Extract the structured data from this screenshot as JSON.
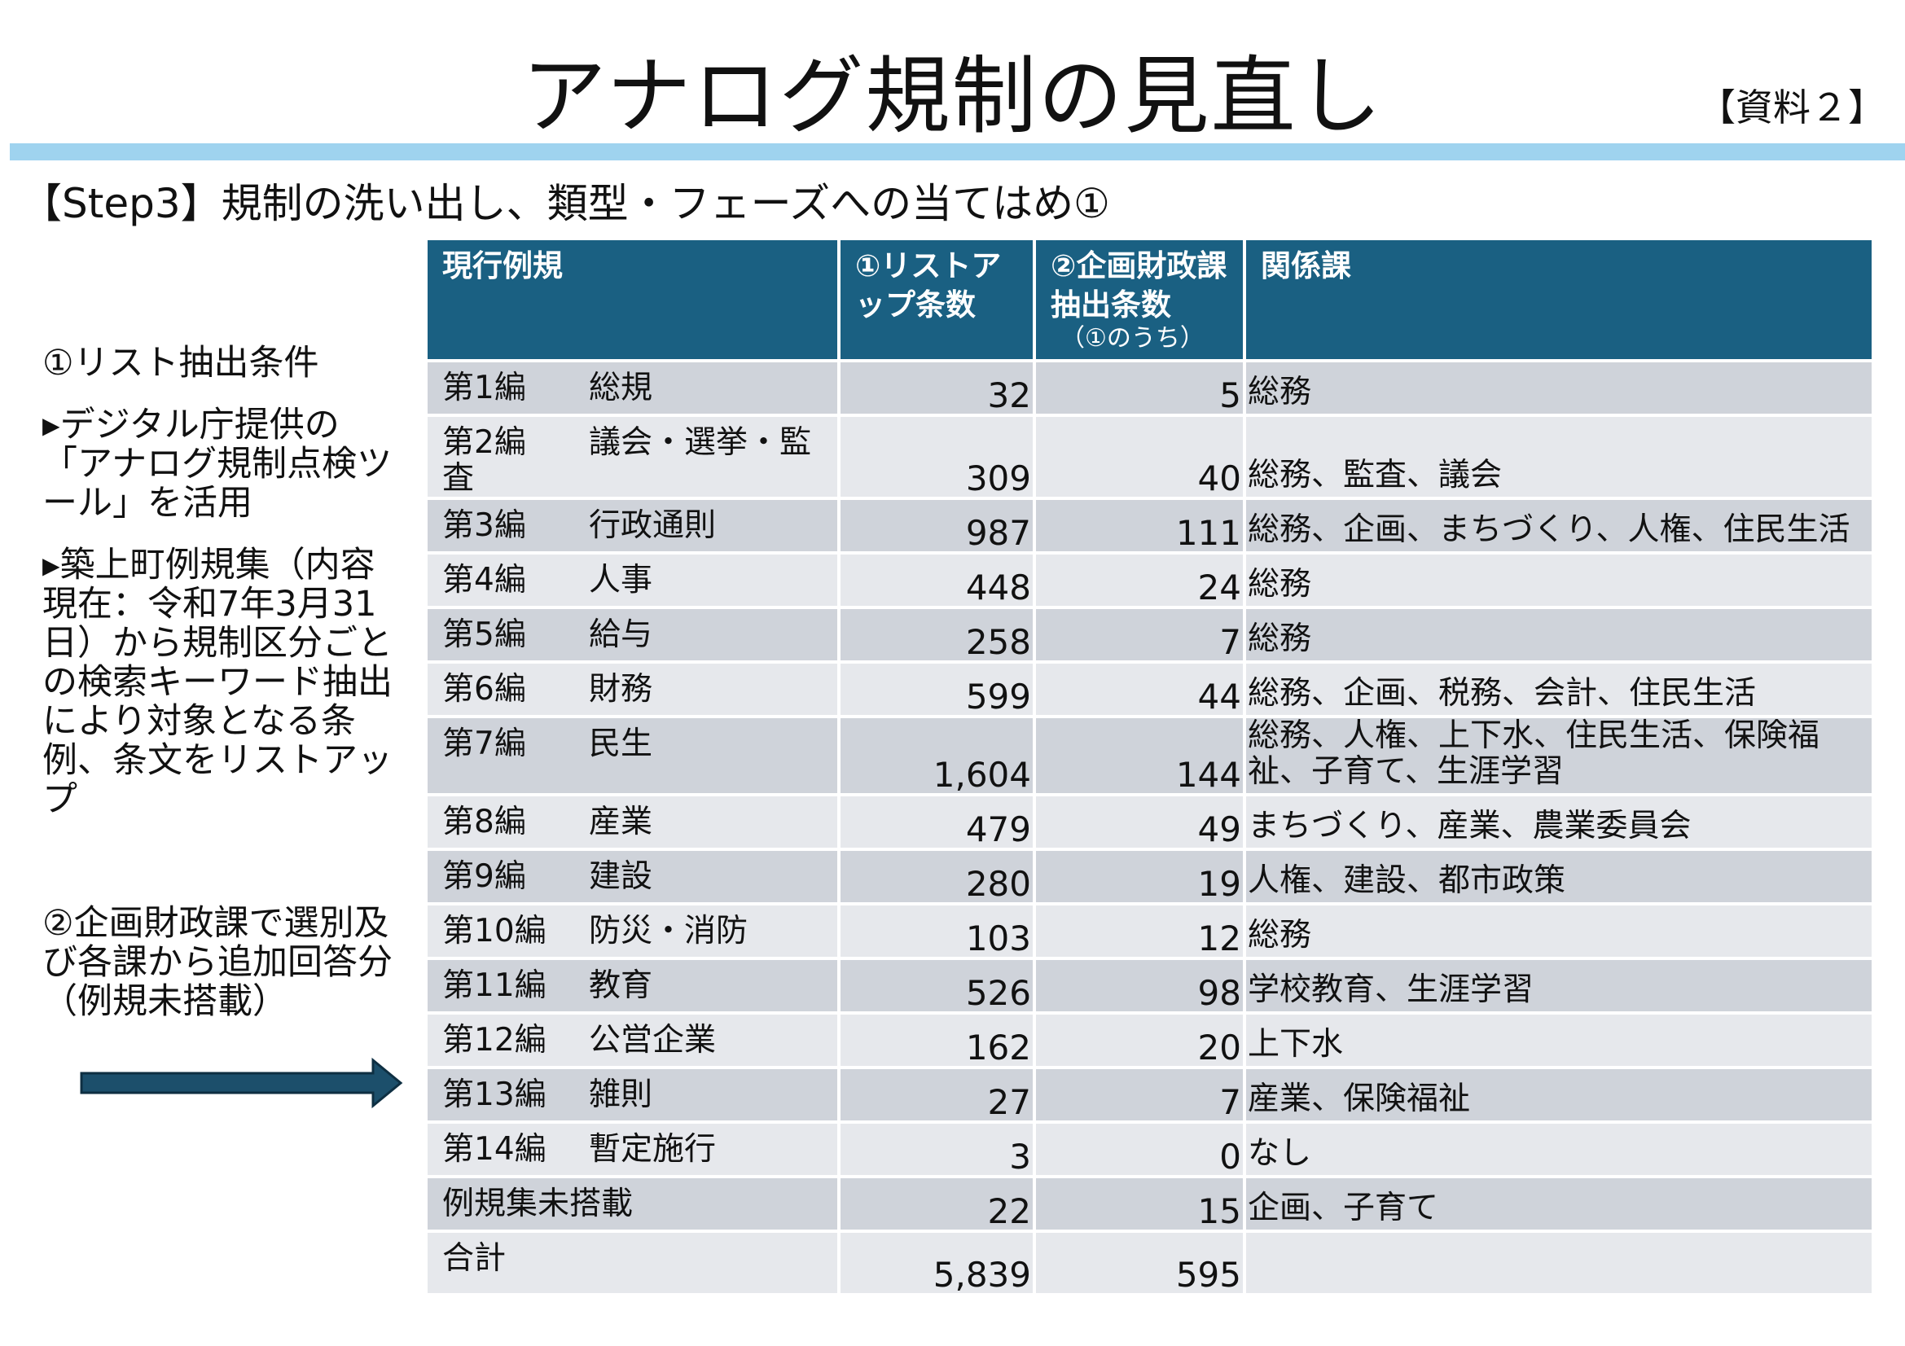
{
  "header": {
    "title": "アナログ規制の見直し",
    "doc_tag": "【資料２】",
    "accent_bar_color": "#9fd3ef"
  },
  "subtitle": "【Step3】規制の洗い出し、類型・フェーズへの当てはめ①",
  "side_notes": {
    "section1_title": "①リスト抽出条件",
    "section1_item1": "▸デジタル庁提供の「アナログ規制点検ツール」を活用",
    "section1_item2": "▸築上町例規集（内容現在：令和7年3月31日）から規制区分ごとの検索キーワード抽出により対象となる条例、条文をリストアップ",
    "section2": "②企画財政課で選別及び各課から追加回答分（例規未搭載）",
    "arrow_icon": "right-arrow-icon",
    "arrow_color": "#1c4f6b"
  },
  "table": {
    "header_color": "#1a6082",
    "columns": [
      "現行例規",
      "①リストアップ条数",
      "②企画財政課抽出条数",
      "（①のうち）",
      "関係課"
    ],
    "rows": [
      {
        "vol": "第1編",
        "name": "総規",
        "listed": "32",
        "extracted": "5",
        "depts": "総務"
      },
      {
        "vol": "第2編",
        "name": "議会・選挙・監査",
        "listed": "309",
        "extracted": "40",
        "depts": "総務、監査、議会"
      },
      {
        "vol": "第3編",
        "name": "行政通則",
        "listed": "987",
        "extracted": "111",
        "depts": "総務、企画、まちづくり、人権、住民生活"
      },
      {
        "vol": "第4編",
        "name": "人事",
        "listed": "448",
        "extracted": "24",
        "depts": "総務"
      },
      {
        "vol": "第5編",
        "name": "給与",
        "listed": "258",
        "extracted": "7",
        "depts": "総務"
      },
      {
        "vol": "第6編",
        "name": "財務",
        "listed": "599",
        "extracted": "44",
        "depts": "総務、企画、税務、会計、住民生活"
      },
      {
        "vol": "第7編",
        "name": "民生",
        "listed": "1,604",
        "extracted": "144",
        "depts": "総務、人権、上下水、住民生活、保険福祉、子育て、生涯学習"
      },
      {
        "vol": "第8編",
        "name": "産業",
        "listed": "479",
        "extracted": "49",
        "depts": "まちづくり、産業、農業委員会"
      },
      {
        "vol": "第9編",
        "name": "建設",
        "listed": "280",
        "extracted": "19",
        "depts": "人権、建設、都市政策"
      },
      {
        "vol": "第10編",
        "name": "防災・消防",
        "listed": "103",
        "extracted": "12",
        "depts": "総務"
      },
      {
        "vol": "第11編",
        "name": "教育",
        "listed": "526",
        "extracted": "98",
        "depts": "学校教育、生涯学習"
      },
      {
        "vol": "第12編",
        "name": "公営企業",
        "listed": "162",
        "extracted": "20",
        "depts": "上下水"
      },
      {
        "vol": "第13編",
        "name": "雑則",
        "listed": "27",
        "extracted": "7",
        "depts": "産業、保険福祉"
      },
      {
        "vol": "第14編",
        "name": "暫定施行",
        "listed": "3",
        "extracted": "0",
        "depts": "なし"
      },
      {
        "vol": "例規集未搭載",
        "name": "",
        "listed": "22",
        "extracted": "15",
        "depts": "企画、子育て"
      },
      {
        "vol": "合計",
        "name": "",
        "listed": "5,839",
        "extracted": "595",
        "depts": ""
      }
    ]
  }
}
